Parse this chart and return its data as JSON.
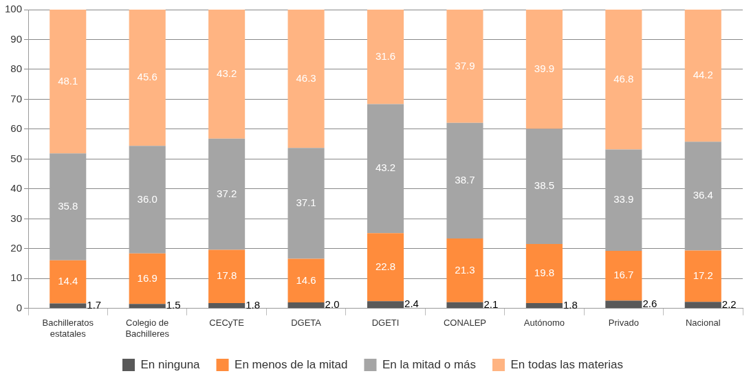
{
  "chart_data": {
    "type": "bar",
    "stacked": true,
    "categories": [
      "Bachilleratos estatales",
      "Colegio de Bachilleres",
      "CECyTE",
      "DGETA",
      "DGETI",
      "CONALEP",
      "Autónomo",
      "Privado",
      "Nacional"
    ],
    "series": [
      {
        "name": "En ninguna",
        "color": "#595959",
        "values": [
          1.7,
          1.5,
          1.8,
          2.0,
          2.4,
          2.1,
          1.8,
          2.6,
          2.2
        ],
        "value_labels": [
          "1.7",
          "1.5",
          "1.8",
          "2.0",
          "2.4",
          "2.1",
          "1.8",
          "2.6",
          "2.2"
        ]
      },
      {
        "name": "En menos de la mitad",
        "color": "#ff8c3c",
        "values": [
          14.4,
          16.9,
          17.8,
          14.6,
          22.8,
          21.3,
          19.8,
          16.7,
          17.2
        ],
        "value_labels": [
          "14.4",
          "16.9",
          "17.8",
          "14.6",
          "22.8",
          "21.3",
          "19.8",
          "16.7",
          "17.2"
        ]
      },
      {
        "name": "En la mitad o más",
        "color": "#a5a5a5",
        "values": [
          35.8,
          36.0,
          37.2,
          37.1,
          43.2,
          38.7,
          38.5,
          33.9,
          36.4
        ],
        "value_labels": [
          "35.8",
          "36.0",
          "37.2",
          "37.1",
          "43.2",
          "38.7",
          "38.5",
          "33.9",
          "36.4"
        ]
      },
      {
        "name": "En todas las materias",
        "color": "#ffb482",
        "values": [
          48.1,
          45.6,
          43.2,
          46.3,
          31.6,
          37.9,
          39.9,
          46.8,
          44.2
        ],
        "value_labels": [
          "48.1",
          "45.6",
          "43.2",
          "46.3",
          "31.6",
          "37.9",
          "39.9",
          "46.8",
          "44.2"
        ]
      }
    ],
    "ylim": [
      0,
      100
    ],
    "yticks": [
      0,
      10,
      20,
      30,
      40,
      50,
      60,
      70,
      80,
      90,
      100
    ],
    "grid": "y",
    "legend": "bottom"
  }
}
